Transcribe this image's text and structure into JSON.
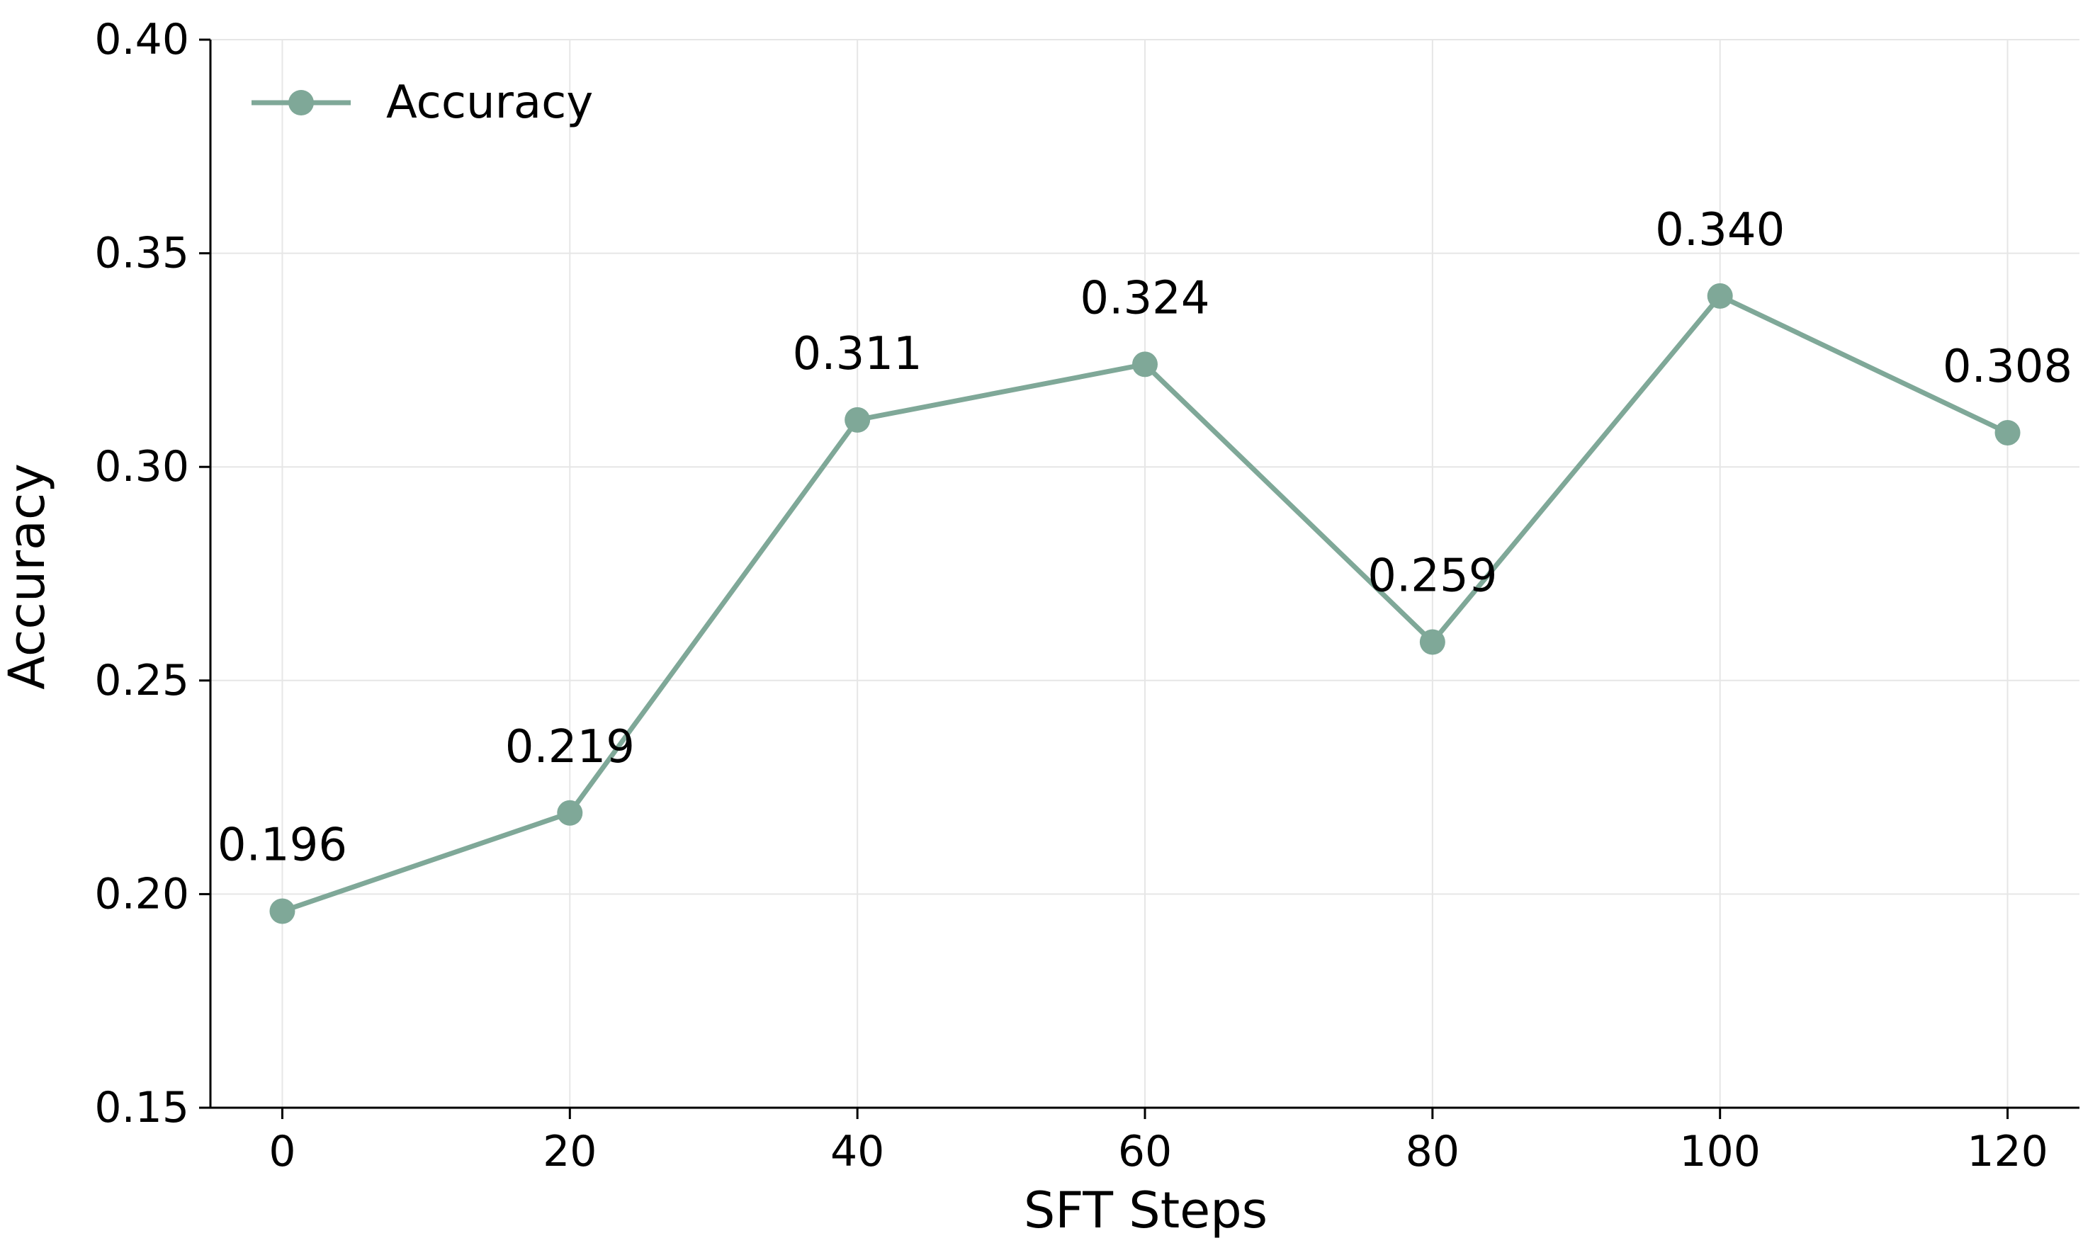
{
  "chart_data": {
    "type": "line",
    "title": "",
    "xlabel": "SFT Steps",
    "ylabel": "Accuracy",
    "x": [
      0,
      20,
      40,
      60,
      80,
      100,
      120
    ],
    "series": [
      {
        "name": "Accuracy",
        "values": [
          0.196,
          0.219,
          0.311,
          0.324,
          0.259,
          0.34,
          0.308
        ],
        "labels": [
          "0.196",
          "0.219",
          "0.311",
          "0.324",
          "0.259",
          "0.340",
          "0.308"
        ],
        "color": "#7fa898"
      }
    ],
    "xlim": [
      -5,
      125
    ],
    "ylim": [
      0.15,
      0.4
    ],
    "xticks": [
      0,
      20,
      40,
      60,
      80,
      100,
      120
    ],
    "xtick_labels": [
      "0",
      "20",
      "40",
      "60",
      "80",
      "100",
      "120"
    ],
    "yticks": [
      0.15,
      0.2,
      0.25,
      0.3,
      0.35,
      0.4
    ],
    "ytick_labels": [
      "0.15",
      "0.20",
      "0.25",
      "0.30",
      "0.35",
      "0.40"
    ],
    "grid": true,
    "legend_position": "top-left"
  }
}
